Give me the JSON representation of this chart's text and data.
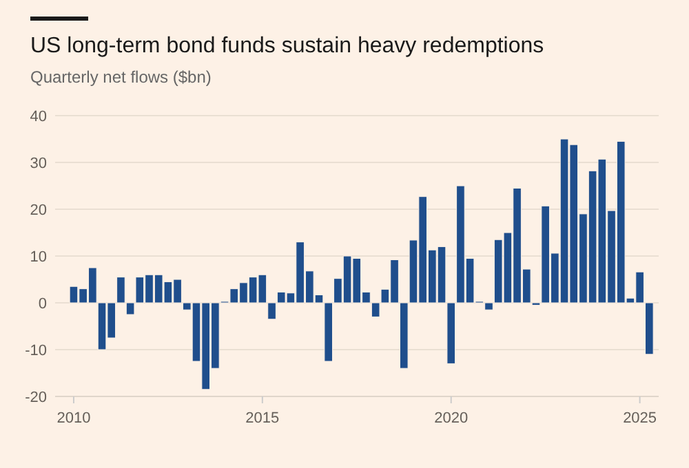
{
  "chart_data": {
    "type": "bar",
    "title": "US long-term bond funds sustain heavy redemptions",
    "subtitle": "Quarterly net flows ($bn)",
    "x": [
      2010,
      2010.25,
      2010.5,
      2010.75,
      2011,
      2011.25,
      2011.5,
      2011.75,
      2012,
      2012.25,
      2012.5,
      2012.75,
      2013,
      2013.25,
      2013.5,
      2013.75,
      2014,
      2014.25,
      2014.5,
      2014.75,
      2015,
      2015.25,
      2015.5,
      2015.75,
      2016,
      2016.25,
      2016.5,
      2016.75,
      2017,
      2017.25,
      2017.5,
      2017.75,
      2018,
      2018.25,
      2018.5,
      2018.75,
      2019,
      2019.25,
      2019.5,
      2019.75,
      2020,
      2020.25,
      2020.5,
      2020.75,
      2021,
      2021.25,
      2021.5,
      2021.75,
      2022,
      2022.25,
      2022.5,
      2022.75,
      2023,
      2023.25,
      2023.5,
      2023.75,
      2024,
      2024.25,
      2024.5,
      2024.75,
      2025,
      2025.25
    ],
    "values": [
      3.5,
      3,
      7.5,
      -10,
      -7.5,
      5.5,
      -2.5,
      5.5,
      6,
      6,
      4.5,
      5,
      -1.5,
      -12.5,
      -18.5,
      -14,
      0.3,
      3,
      4.3,
      5.5,
      6,
      -3.5,
      2.3,
      2.1,
      13,
      6.8,
      1.7,
      -12.5,
      5.2,
      10,
      9.5,
      2.3,
      -3,
      2.9,
      9.2,
      -14,
      13.4,
      22.7,
      11.3,
      12,
      -13,
      25,
      9.5,
      0.3,
      -1.5,
      13.5,
      15,
      24.5,
      7.2,
      -0.5,
      20.7,
      10.6,
      35,
      33.8,
      19,
      28.2,
      30.7,
      19.7,
      34.5,
      1,
      6.6,
      -11
    ],
    "color": "#1f4e8c",
    "xlim": [
      2009.8,
      2025.5
    ],
    "xticks": [
      2010,
      2015,
      2020,
      2025
    ],
    "ylim": [
      -20,
      40
    ],
    "yticks": [
      -20,
      -10,
      0,
      10,
      20,
      30,
      40
    ],
    "grid": "y"
  }
}
